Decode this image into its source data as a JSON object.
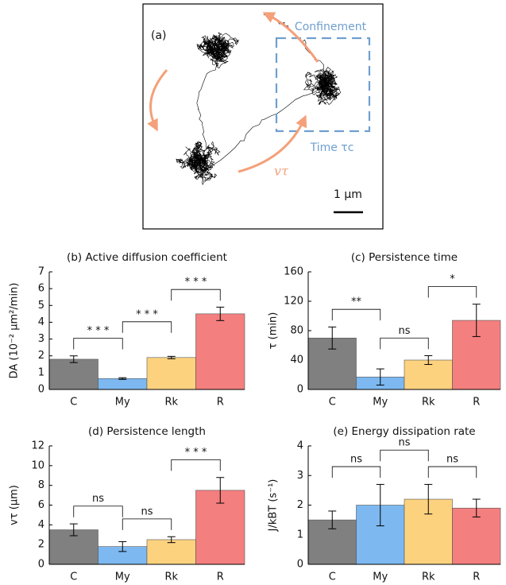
{
  "panel_a": {
    "label": "(a)",
    "confinement": "Confinement",
    "time": "Time τc",
    "velocity": "vτ",
    "scale": "1 μm"
  },
  "chart_data": [
    {
      "type": "bar",
      "title": "(b) Active diffusion coefficient",
      "ylabel": "DA (10⁻² μm²/min)",
      "categories": [
        "C",
        "My",
        "Rk",
        "R"
      ],
      "values": [
        1.8,
        0.65,
        1.9,
        4.5
      ],
      "errors": [
        0.2,
        0.05,
        0.07,
        0.4
      ],
      "colors": [
        "#808080",
        "#7db8f0",
        "#fdd27f",
        "#f47f7f"
      ],
      "ylim": [
        0,
        7
      ],
      "yticks": [
        0,
        1,
        2,
        3,
        4,
        5,
        6,
        7
      ],
      "significance": [
        "* * *",
        "* * *",
        "* * *"
      ]
    },
    {
      "type": "bar",
      "title": "(c) Persistence time",
      "ylabel": "τ (min)",
      "categories": [
        "C",
        "My",
        "Rk",
        "R"
      ],
      "values": [
        70,
        17,
        40,
        94
      ],
      "errors": [
        15,
        11,
        6,
        22
      ],
      "colors": [
        "#808080",
        "#7db8f0",
        "#fdd27f",
        "#f47f7f"
      ],
      "ylim": [
        0,
        160
      ],
      "yticks": [
        0,
        40,
        80,
        120,
        160
      ],
      "significance": [
        "**",
        "ns",
        "*"
      ]
    },
    {
      "type": "bar",
      "title": "(d) Persistence length",
      "ylabel": "vτ (μm)",
      "categories": [
        "C",
        "My",
        "Rk",
        "R"
      ],
      "values": [
        3.5,
        1.8,
        2.5,
        7.5
      ],
      "errors": [
        0.6,
        0.5,
        0.3,
        1.3
      ],
      "colors": [
        "#808080",
        "#7db8f0",
        "#fdd27f",
        "#f47f7f"
      ],
      "ylim": [
        0,
        12
      ],
      "yticks": [
        0,
        2,
        4,
        6,
        8,
        10,
        12
      ],
      "significance": [
        "ns",
        "ns",
        "* * *"
      ]
    },
    {
      "type": "bar",
      "title": "(e) Energy dissipation rate",
      "ylabel": "J/kBT (s⁻¹)",
      "categories": [
        "C",
        "My",
        "Rk",
        "R"
      ],
      "values": [
        1.5,
        2.0,
        2.2,
        1.9
      ],
      "errors": [
        0.3,
        0.7,
        0.5,
        0.3
      ],
      "colors": [
        "#808080",
        "#7db8f0",
        "#fdd27f",
        "#f47f7f"
      ],
      "ylim": [
        0,
        4
      ],
      "yticks": [
        0,
        1,
        2,
        3,
        4
      ],
      "significance": [
        "ns",
        "ns",
        "ns"
      ]
    }
  ]
}
